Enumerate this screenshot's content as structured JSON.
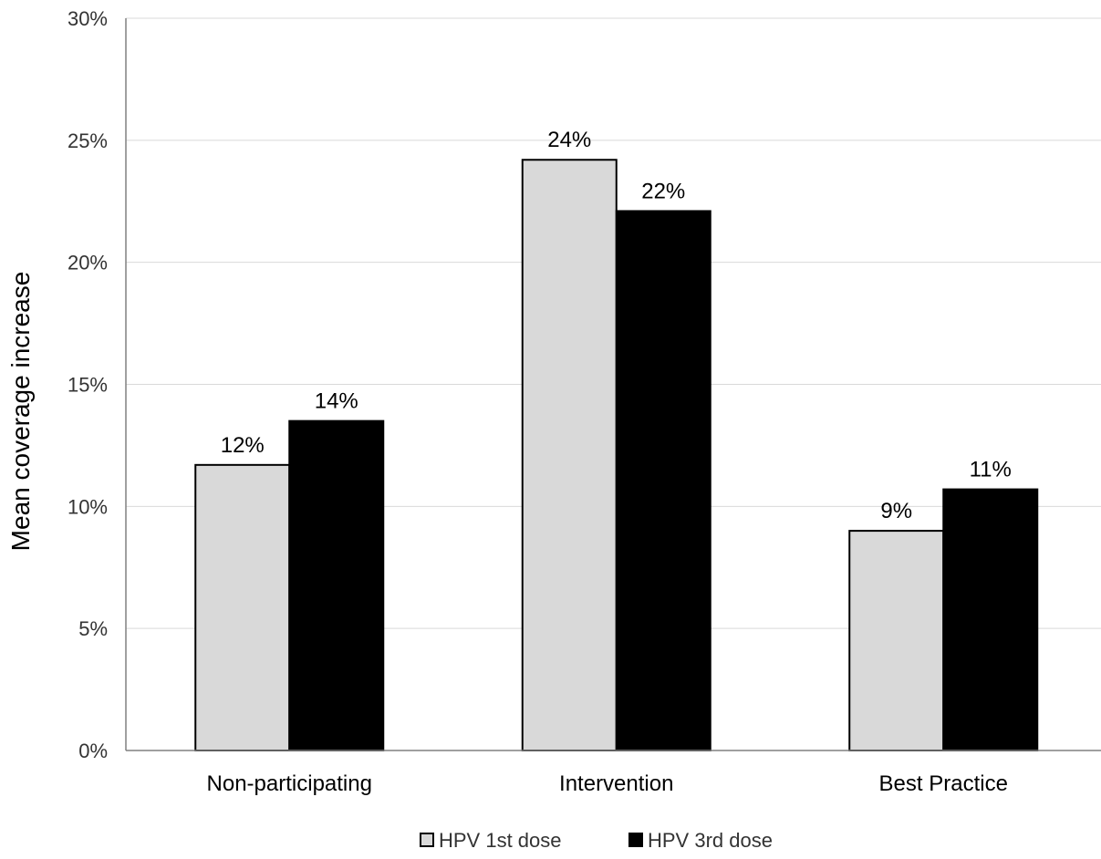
{
  "chart_data": {
    "type": "bar",
    "title": "",
    "xlabel": "",
    "ylabel": "Mean  coverage increase",
    "ylim": [
      0,
      30
    ],
    "yticks": [
      "0%",
      "5%",
      "10%",
      "15%",
      "20%",
      "25%",
      "30%"
    ],
    "ytick_values": [
      0,
      5,
      10,
      15,
      20,
      25,
      30
    ],
    "grid": true,
    "legend_position": "bottom-center",
    "categories": [
      "Non-participating",
      "Intervention",
      "Best Practice"
    ],
    "series": [
      {
        "name": "HPV 1st dose",
        "color": "#d9d9d9",
        "values": [
          11.7,
          24.2,
          9.0
        ],
        "labels": [
          "12%",
          "24%",
          "9%"
        ]
      },
      {
        "name": "HPV 3rd dose",
        "color": "#000000",
        "values": [
          13.5,
          22.1,
          10.7
        ],
        "labels": [
          "14%",
          "22%",
          "11%"
        ]
      }
    ]
  }
}
